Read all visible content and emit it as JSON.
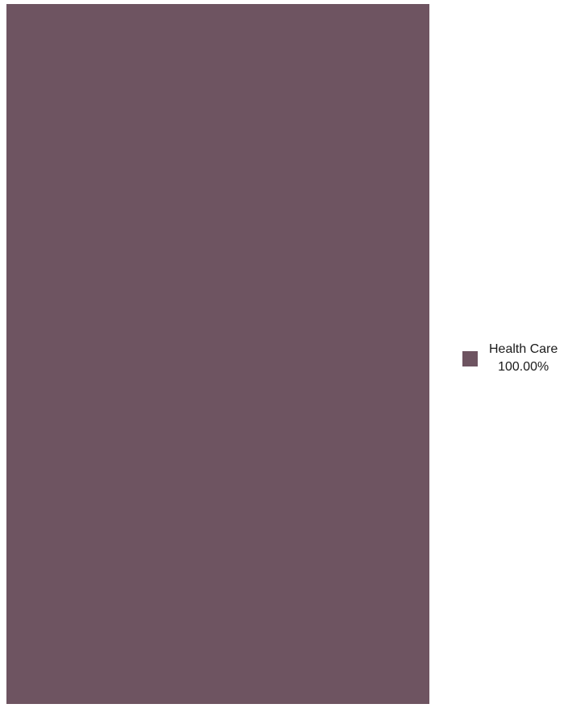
{
  "chart_data": {
    "type": "treemap",
    "title": "",
    "items": [
      {
        "label": "Health Care",
        "value": 100.0,
        "value_label": "100.00%",
        "color": "#6e5461"
      }
    ],
    "legend": {
      "placement": "right",
      "entries": [
        {
          "label": "Health Care",
          "value_label": "100.00%",
          "color": "#6e5461"
        }
      ]
    }
  }
}
